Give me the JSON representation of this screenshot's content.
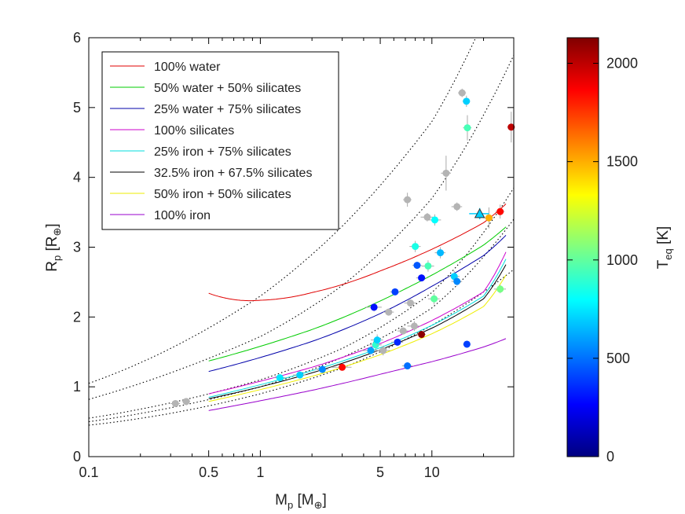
{
  "chart_data": {
    "type": "scatter",
    "xscale": "log",
    "xlim": [
      0.1,
      30
    ],
    "ylim": [
      0,
      6
    ],
    "xlabel": {
      "main": "M",
      "sub": "p",
      "unit_open": " [M",
      "unit_sub": "⊕",
      "unit_close": "]"
    },
    "ylabel": {
      "main": "R",
      "sub": "p",
      "unit_open": " [R",
      "unit_sub": "⊕",
      "unit_close": "]"
    },
    "xticks": [
      0.1,
      0.5,
      1,
      5,
      10
    ],
    "xtick_labels": [
      "0.1",
      "0.5",
      "1",
      "5",
      "10"
    ],
    "yticks": [
      0,
      1,
      2,
      3,
      4,
      5,
      6
    ],
    "ytick_labels": [
      "0",
      "1",
      "2",
      "3",
      "4",
      "5",
      "6"
    ],
    "legend_position": "top-left",
    "series": [
      {
        "name": "100% water",
        "color": "#e00000",
        "x": [
          0.5,
          0.7,
          1.0,
          2,
          5,
          10,
          20,
          27
        ],
        "y": [
          2.34,
          2.25,
          2.24,
          2.35,
          2.66,
          2.97,
          3.35,
          3.62
        ]
      },
      {
        "name": "50% water + 50% silicates",
        "color": "#00cc00",
        "x": [
          0.5,
          1,
          2,
          5,
          10,
          20,
          27
        ],
        "y": [
          1.37,
          1.58,
          1.82,
          2.23,
          2.6,
          3.03,
          3.29
        ]
      },
      {
        "name": "25% water + 75% silicates",
        "color": "#0000aa",
        "x": [
          0.5,
          1,
          2,
          5,
          10,
          20,
          27
        ],
        "y": [
          1.22,
          1.42,
          1.65,
          2.05,
          2.44,
          2.88,
          3.17
        ]
      },
      {
        "name": "100% silicates",
        "color": "#cc00cc",
        "x": [
          0.5,
          1,
          2,
          5,
          10,
          20,
          27
        ],
        "y": [
          0.9,
          1.08,
          1.28,
          1.62,
          1.95,
          2.36,
          2.93
        ]
      },
      {
        "name": "25% iron + 75% silicates",
        "color": "#00dddd",
        "x": [
          0.5,
          1,
          2,
          5,
          10,
          20,
          27
        ],
        "y": [
          0.85,
          1.03,
          1.23,
          1.56,
          1.88,
          2.3,
          2.83
        ]
      },
      {
        "name": "32.5% iron + 67.5% silicates",
        "color": "#000000",
        "x": [
          0.5,
          1,
          2,
          5,
          10,
          20,
          27
        ],
        "y": [
          0.83,
          1.0,
          1.2,
          1.53,
          1.84,
          2.26,
          2.75
        ]
      },
      {
        "name": "50% iron + 50% silicates",
        "color": "#eeee00",
        "x": [
          0.5,
          1,
          2,
          5,
          10,
          20,
          27
        ],
        "y": [
          0.79,
          0.96,
          1.15,
          1.46,
          1.76,
          2.15,
          2.6
        ]
      },
      {
        "name": "100% iron",
        "color": "#9900cc",
        "x": [
          0.5,
          1,
          2,
          5,
          10,
          20,
          27
        ],
        "y": [
          0.66,
          0.8,
          0.95,
          1.18,
          1.36,
          1.57,
          1.69
        ]
      }
    ],
    "reference_lines": [
      {
        "x": [
          0.1,
          0.3,
          1,
          3,
          10,
          18
        ],
        "y": [
          1.05,
          1.55,
          2.3,
          3.3,
          4.8,
          6.0
        ]
      },
      {
        "x": [
          0.1,
          0.3,
          1,
          3,
          10,
          30
        ],
        "y": [
          0.82,
          1.2,
          1.72,
          2.45,
          3.7,
          5.75
        ]
      },
      {
        "x": [
          0.1,
          0.3,
          1,
          3,
          10,
          30
        ],
        "y": [
          0.55,
          0.77,
          1.1,
          1.55,
          2.35,
          3.85
        ]
      },
      {
        "x": [
          0.1,
          0.3,
          1,
          3,
          10,
          30
        ],
        "y": [
          0.5,
          0.7,
          1.0,
          1.42,
          2.13,
          3.4
        ]
      },
      {
        "x": [
          0.1,
          0.3,
          1,
          3,
          10,
          30
        ],
        "y": [
          0.45,
          0.62,
          0.9,
          1.27,
          1.88,
          2.68
        ]
      }
    ],
    "points": [
      {
        "x": 0.32,
        "y": 0.76,
        "teq": null,
        "xerr": 0.02,
        "yerr": 0.03
      },
      {
        "x": 0.37,
        "y": 0.79,
        "teq": null,
        "xerr": 0.02,
        "yerr": 0.03
      },
      {
        "x": 1.3,
        "y": 1.13,
        "teq": 750,
        "xerr": 0.1,
        "yerr": 0.04
      },
      {
        "x": 1.7,
        "y": 1.17,
        "teq": 700,
        "xerr": 0.15,
        "yerr": 0.04
      },
      {
        "x": 2.3,
        "y": 1.25,
        "teq": 550,
        "xerr": 0.2,
        "yerr": 0.05
      },
      {
        "x": 3.0,
        "y": 1.28,
        "teq": 1850,
        "xerr": 0.4,
        "yerr": 0.05
      },
      {
        "x": 4.4,
        "y": 1.52,
        "teq": 600,
        "xerr": 0.5,
        "yerr": 0.06
      },
      {
        "x": 4.7,
        "y": 1.6,
        "teq": 900,
        "xerr": 0.4,
        "yerr": 0.1
      },
      {
        "x": 4.8,
        "y": 1.67,
        "teq": 700,
        "xerr": 0.4,
        "yerr": 0.08
      },
      {
        "x": 5.2,
        "y": 1.52,
        "teq": null,
        "xerr": 0.5,
        "yerr": 0.07
      },
      {
        "x": 5.6,
        "y": 2.07,
        "teq": null,
        "xerr": 0.4,
        "yerr": 0.05
      },
      {
        "x": 6.3,
        "y": 1.64,
        "teq": 350,
        "xerr": 0.5,
        "yerr": 0.05
      },
      {
        "x": 7.2,
        "y": 1.3,
        "teq": 500,
        "xerr": 0.5,
        "yerr": 0.05
      },
      {
        "x": 7.5,
        "y": 2.2,
        "teq": null,
        "xerr": 0.6,
        "yerr": 0.05
      },
      {
        "x": 6.8,
        "y": 1.8,
        "teq": null,
        "xerr": 0.5,
        "yerr": 0.05
      },
      {
        "x": 7.9,
        "y": 1.87,
        "teq": null,
        "xerr": 0.7,
        "yerr": 0.07
      },
      {
        "x": 8.7,
        "y": 1.75,
        "teq": 2100,
        "xerr": 0.5,
        "yerr": 0.05
      },
      {
        "x": 4.6,
        "y": 2.14,
        "teq": 300,
        "xerr": 0.5,
        "yerr": 0.06
      },
      {
        "x": 6.1,
        "y": 2.36,
        "teq": 400,
        "xerr": 0.4,
        "yerr": 0.05
      },
      {
        "x": 7.2,
        "y": 3.68,
        "teq": null,
        "xerr": 0.4,
        "yerr": 0.1
      },
      {
        "x": 8.0,
        "y": 3.01,
        "teq": 850,
        "xerr": 0.6,
        "yerr": 0.08
      },
      {
        "x": 8.2,
        "y": 2.74,
        "teq": 450,
        "xerr": 0.5,
        "yerr": 0.05
      },
      {
        "x": 8.7,
        "y": 2.56,
        "teq": 300,
        "xerr": 0.6,
        "yerr": 0.05
      },
      {
        "x": 9.5,
        "y": 2.73,
        "teq": 950,
        "xerr": 0.8,
        "yerr": 0.08
      },
      {
        "x": 9.4,
        "y": 3.43,
        "teq": null,
        "xerr": 0.8,
        "yerr": 0.06
      },
      {
        "x": 10.4,
        "y": 3.39,
        "teq": 800,
        "xerr": 0.9,
        "yerr": 0.08
      },
      {
        "x": 10.3,
        "y": 2.26,
        "teq": 1000,
        "xerr": 0.8,
        "yerr": 0.08
      },
      {
        "x": 11.2,
        "y": 2.92,
        "teq": 650,
        "xerr": 0.8,
        "yerr": 0.08
      },
      {
        "x": 12.1,
        "y": 4.06,
        "teq": null,
        "xerr": 0.8,
        "yerr": 0.25
      },
      {
        "x": 13.5,
        "y": 2.58,
        "teq": 700,
        "xerr": 1.0,
        "yerr": 0.08
      },
      {
        "x": 14.0,
        "y": 2.51,
        "teq": 550,
        "xerr": 1.0,
        "yerr": 0.06
      },
      {
        "x": 14.0,
        "y": 3.58,
        "teq": null,
        "xerr": 1.0,
        "yerr": 0.06
      },
      {
        "x": 15.0,
        "y": 5.21,
        "teq": null,
        "xerr": 0.8,
        "yerr": 0.06
      },
      {
        "x": 15.9,
        "y": 5.09,
        "teq": 700,
        "xerr": 0.8,
        "yerr": 0.08
      },
      {
        "x": 16.1,
        "y": 4.71,
        "teq": 950,
        "xerr": 0.9,
        "yerr": 0.18
      },
      {
        "x": 16.0,
        "y": 1.61,
        "teq": 400,
        "xerr": 0.8,
        "yerr": 0.04
      },
      {
        "x": 21.5,
        "y": 3.42,
        "teq": 1500,
        "xerr": 1.5,
        "yerr": 0.15
      },
      {
        "x": 25.0,
        "y": 3.51,
        "teq": 1850,
        "xerr": 1.5,
        "yerr": 0.1
      },
      {
        "x": 25.0,
        "y": 2.4,
        "teq": 1050,
        "xerr": 2.0,
        "yerr": 0.06
      },
      {
        "x": 29.0,
        "y": 4.72,
        "teq": 2000,
        "xerr": 1.5,
        "yerr": 0.22
      }
    ],
    "triangle": {
      "x": 19.0,
      "y": 3.48,
      "teq": 700,
      "xerr": 2.5,
      "yerr": 0.08
    },
    "colorbar": {
      "label": {
        "main": "T",
        "sub": "eq",
        "unit": " [K]"
      },
      "range": [
        0,
        2130
      ],
      "ticks": [
        0,
        500,
        1000,
        1500,
        2000
      ],
      "tick_labels": [
        "0",
        "500",
        "1000",
        "1500",
        "2000"
      ]
    },
    "missing_teq_color": "#b4b4b4"
  }
}
